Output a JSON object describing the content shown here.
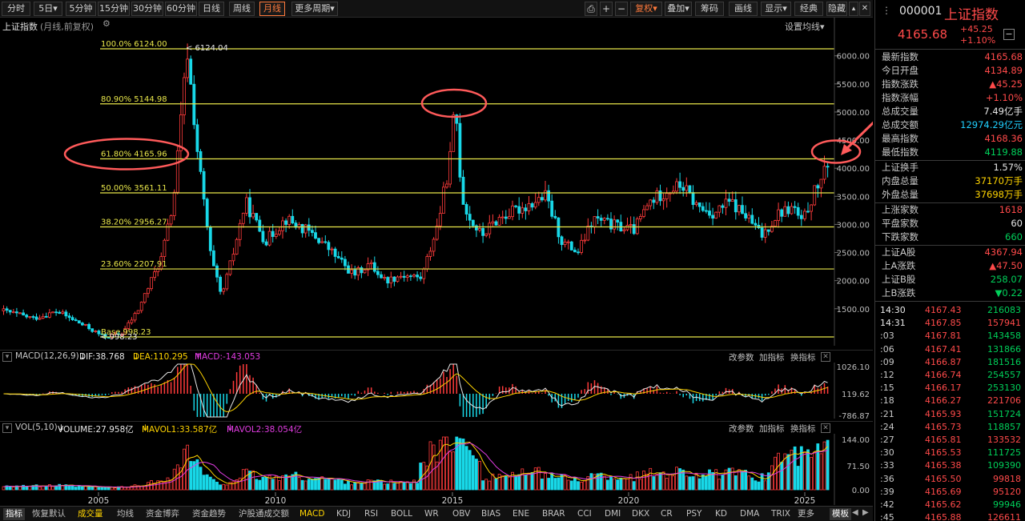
{
  "toolbar": {
    "periods": [
      "分时",
      "5日",
      "5分钟",
      "15分钟",
      "30分钟",
      "60分钟",
      "日线",
      "周线",
      "月线",
      "更多周期"
    ],
    "active_period": "月线",
    "more_arrow": "▾",
    "tools": [
      "复权",
      "叠加",
      "筹码",
      "画线",
      "显示",
      "经典",
      "隐藏"
    ]
  },
  "chart": {
    "index_name": "上证指数",
    "mode": "(月线,前复权)",
    "ma_setting": "设置均线",
    "fib_levels": [
      {
        "label": "100.0% 6124.00",
        "value": 6124.0
      },
      {
        "label": "80.90% 5144.98",
        "value": 5144.98
      },
      {
        "label": "61.80% 4165.96",
        "value": 4165.96
      },
      {
        "label": "50.00% 3561.11",
        "value": 3561.11
      },
      {
        "label": "38.20% 2956.27",
        "value": 2956.27
      },
      {
        "label": "23.60% 2207.91",
        "value": 2207.91
      },
      {
        "label": "Base 998.23",
        "value": 998.23
      }
    ],
    "high_marker": "6124.04",
    "low_marker": "998.23",
    "x_labels": [
      "2005",
      "2010",
      "2015",
      "2020",
      "2025"
    ],
    "y_labels": [
      "6000.00",
      "5500.00",
      "5000.00",
      "4500.00",
      "4000.00",
      "3500.00",
      "3000.00",
      "2500.00",
      "2000.00",
      "1500.00"
    ],
    "up_color": "#ff3b3b",
    "down_color": "#18d8e8",
    "fib_color": "#e8e64a",
    "circle_color": "#ff5a5a"
  },
  "macd": {
    "title": "MACD(12,26,9)",
    "dif": "DIF:38.768",
    "dea": "DEA:110.295",
    "macd": "MACD:-143.053",
    "dif_arrow": "↓",
    "dea_arrow": "↓",
    "macd_arrow": "↑",
    "y_labels": [
      "1026.10",
      "119.62",
      "-786.87"
    ],
    "actions": [
      "改参数",
      "加指标",
      "换指标"
    ]
  },
  "vol": {
    "title": "VOL(5,10)",
    "volume": "VOLUME:27.958亿",
    "mavol1": "MAVOL1:33.587亿",
    "mavol2": "MAVOL2:38.054亿",
    "vol_arrow": "↓",
    "mavol1_arrow": "↓",
    "mavol2_arrow": "↓",
    "y_labels": [
      "144.00",
      "71.50",
      "0.00"
    ],
    "actions": [
      "改参数",
      "加指标",
      "换指标"
    ]
  },
  "bottom_tabs": [
    "指标",
    "恢复默认",
    "成交量",
    "均线",
    "资金博弈",
    "资金趋势",
    "沪股通成交额",
    "MACD",
    "KDJ",
    "RSI",
    "BOLL",
    "WR",
    "OBV",
    "BIAS",
    "ENE",
    "BRAR",
    "CCI",
    "DMI",
    "DKX",
    "CR",
    "PSY",
    "KD",
    "DMA",
    "TRIX",
    "更多",
    "模板"
  ],
  "quote": {
    "code": "000001",
    "name": "上证指数",
    "price": "4165.68",
    "change": "+45.25",
    "change_pct": "+1.10%",
    "stats": [
      {
        "label": "最新指数",
        "value": "4165.68",
        "color": "red"
      },
      {
        "label": "今日开盘",
        "value": "4134.89",
        "color": "red"
      },
      {
        "label": "指数涨跌",
        "value": "▲45.25",
        "color": "red"
      },
      {
        "label": "指数涨幅",
        "value": "+1.10%",
        "color": "red"
      },
      {
        "label": "总成交量",
        "value": "7.49亿手",
        "color": "white"
      },
      {
        "label": "总成交额",
        "value": "12974.29亿元",
        "color": "cyan"
      },
      {
        "label": "最高指数",
        "value": "4168.36",
        "color": "red"
      },
      {
        "label": "最低指数",
        "value": "4119.88",
        "color": "green"
      }
    ],
    "stats2": [
      {
        "label": "上证换手",
        "value": "1.57%",
        "color": "white"
      },
      {
        "label": "内盘总量",
        "value": "37170万手",
        "color": "yellow"
      },
      {
        "label": "外盘总量",
        "value": "37698万手",
        "color": "yellow"
      }
    ],
    "stats3": [
      {
        "label": "上涨家数",
        "value": "1618",
        "color": "red"
      },
      {
        "label": "平盘家数",
        "value": "60",
        "color": "white"
      },
      {
        "label": "下跌家数",
        "value": "660",
        "color": "green"
      }
    ],
    "stats4": [
      {
        "label": "上证A股",
        "value": "4367.94",
        "color": "red"
      },
      {
        "label": "上A涨跌",
        "value": "▲47.50",
        "color": "red"
      },
      {
        "label": "上证B股",
        "value": "258.07",
        "color": "green"
      },
      {
        "label": "上B涨跌",
        "value": "▼0.22",
        "color": "green"
      }
    ]
  },
  "ticks": [
    {
      "time": "14:30",
      "price": "4167.43",
      "vol": "216083",
      "vc": "green"
    },
    {
      "time": "14:31",
      "price": "4167.85",
      "vol": "157941",
      "vc": "red"
    },
    {
      "time": ":03",
      "price": "4167.81",
      "vol": "143458",
      "vc": "green"
    },
    {
      "time": ":06",
      "price": "4167.41",
      "vol": "131866",
      "vc": "green"
    },
    {
      "time": ":09",
      "price": "4166.87",
      "vol": "181516",
      "vc": "green"
    },
    {
      "time": ":12",
      "price": "4166.74",
      "vol": "254557",
      "vc": "green"
    },
    {
      "time": ":15",
      "price": "4166.17",
      "vol": "253130",
      "vc": "green"
    },
    {
      "time": ":18",
      "price": "4166.27",
      "vol": "221706",
      "vc": "red"
    },
    {
      "time": ":21",
      "price": "4165.93",
      "vol": "151724",
      "vc": "green"
    },
    {
      "time": ":24",
      "price": "4165.73",
      "vol": "118857",
      "vc": "green"
    },
    {
      "time": ":27",
      "price": "4165.81",
      "vol": "133532",
      "vc": "red"
    },
    {
      "time": ":30",
      "price": "4165.53",
      "vol": "111725",
      "vc": "green"
    },
    {
      "time": ":33",
      "price": "4165.38",
      "vol": "109390",
      "vc": "green"
    },
    {
      "time": ":36",
      "price": "4165.50",
      "vol": "99818",
      "vc": "red"
    },
    {
      "time": ":39",
      "price": "4165.69",
      "vol": "95120",
      "vc": "red"
    },
    {
      "time": ":42",
      "price": "4165.62",
      "vol": "99946",
      "vc": "green"
    },
    {
      "time": ":45",
      "price": "4165.88",
      "vol": "126611",
      "vc": "red"
    }
  ]
}
